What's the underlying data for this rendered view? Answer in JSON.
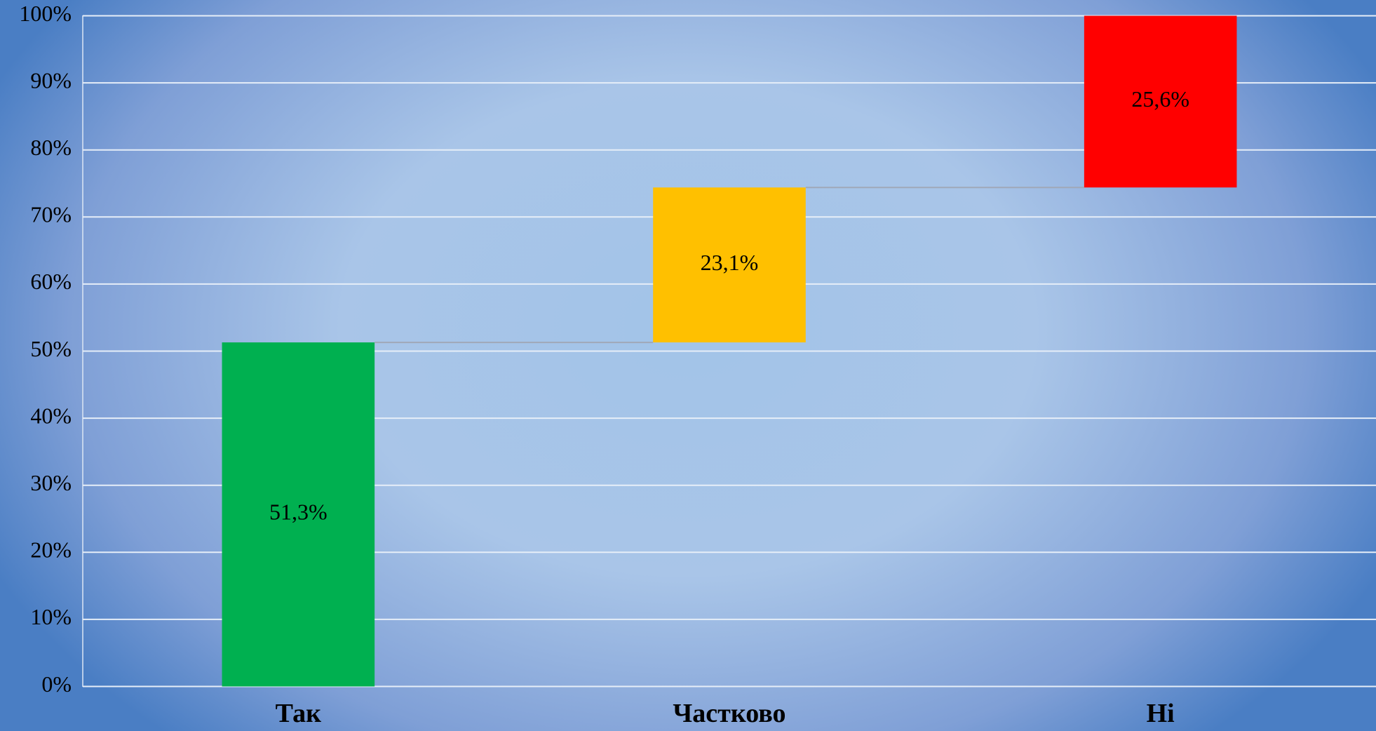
{
  "chart_data": {
    "type": "waterfall",
    "categories": [
      "Так",
      "Частково",
      "Ні"
    ],
    "values": [
      51.3,
      23.1,
      25.6
    ],
    "value_labels": [
      "51,3%",
      "23,1%",
      "25,6%"
    ],
    "colors": [
      "#00b050",
      "#ffc000",
      "#ff0000"
    ],
    "ylim": [
      0,
      100
    ],
    "yticks": [
      {
        "value": 0,
        "label": "0%"
      },
      {
        "value": 10,
        "label": "10%"
      },
      {
        "value": 20,
        "label": "20%"
      },
      {
        "value": 30,
        "label": "30%"
      },
      {
        "value": 40,
        "label": "40%"
      },
      {
        "value": 50,
        "label": "50%"
      },
      {
        "value": 60,
        "label": "60%"
      },
      {
        "value": 70,
        "label": "70%"
      },
      {
        "value": 80,
        "label": "80%"
      },
      {
        "value": 90,
        "label": "90%"
      },
      {
        "value": 100,
        "label": "100%"
      }
    ],
    "grid": true
  }
}
